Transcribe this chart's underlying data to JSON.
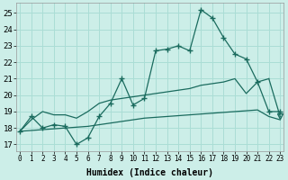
{
  "xlabel": "Humidex (Indice chaleur)",
  "bg_color": "#cceee8",
  "grid_color": "#aaddd5",
  "line_color": "#1a6b5e",
  "x_ticks": [
    0,
    1,
    2,
    3,
    4,
    5,
    6,
    7,
    8,
    9,
    10,
    11,
    12,
    13,
    14,
    15,
    16,
    17,
    18,
    19,
    20,
    21,
    22,
    23
  ],
  "y_ticks": [
    17,
    18,
    19,
    20,
    21,
    22,
    23,
    24,
    25
  ],
  "ylim": [
    16.6,
    25.6
  ],
  "xlim": [
    -0.3,
    23.3
  ],
  "line1_y": [
    17.8,
    18.7,
    18.0,
    18.2,
    18.1,
    17.0,
    17.4,
    18.7,
    19.5,
    21.0,
    19.4,
    19.8,
    22.7,
    22.8,
    23.0,
    22.7,
    25.2,
    24.7,
    23.5,
    22.5,
    22.2,
    20.8,
    19.0,
    19.0
  ],
  "line2_y": [
    17.8,
    18.5,
    19.0,
    18.8,
    18.8,
    18.6,
    19.0,
    19.5,
    19.7,
    19.8,
    19.9,
    20.0,
    20.1,
    20.2,
    20.3,
    20.4,
    20.6,
    20.7,
    20.8,
    21.0,
    20.1,
    20.8,
    21.0,
    18.7
  ],
  "line3_y": [
    17.8,
    17.85,
    17.9,
    17.95,
    18.0,
    18.05,
    18.1,
    18.2,
    18.3,
    18.4,
    18.5,
    18.6,
    18.65,
    18.7,
    18.75,
    18.8,
    18.85,
    18.9,
    18.95,
    19.0,
    19.05,
    19.1,
    18.7,
    18.5
  ]
}
